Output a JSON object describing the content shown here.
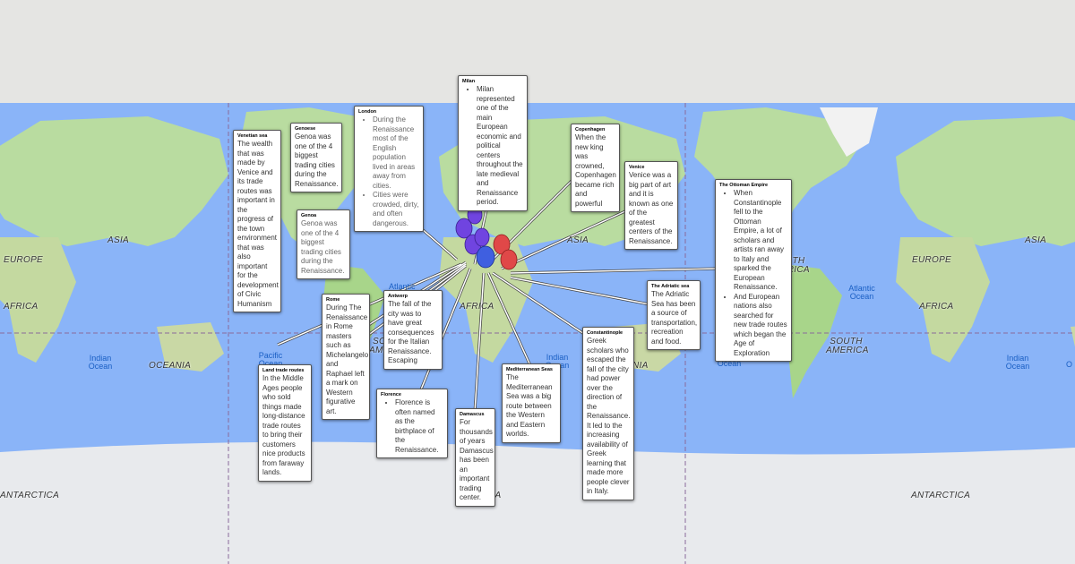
{
  "map": {
    "colors": {
      "ocean": "#8ab4f8",
      "land": "#b9dca0",
      "ice": "#e8eaed",
      "pin_purple": "#7044e0",
      "pin_blue": "#3f5fe0",
      "pin_red": "#e04848"
    },
    "labels": {
      "asia_l": "ASIA",
      "europe_l": "EUROPE",
      "africa_l": "AFRICA",
      "oceania_l": "OCEANIA",
      "antarctica_l": "ANTARCTICA",
      "africa_c": "AFRICA",
      "asia_c": "ASIA",
      "south_c": "SO",
      "america_c": "AME",
      "asia_r": "ASIA",
      "europe_r": "EUROPE",
      "africa_r": "AFRICA",
      "north_america_r": "NORTH AMERICA",
      "south_america_r": "SOUTH AMERICA",
      "antarctica_c": "CA",
      "antarctica_r": "ANTARCTICA",
      "oceania_c": "NIA"
    },
    "oceans": {
      "indian_l": "Indian Ocean",
      "pacific_c": "Pacific Ocean",
      "atlantic_c": "Atlantic",
      "indian_c": "Indian Ocean",
      "pacific_r": "Pacific Ocean",
      "atlantic_r": "Atlantic Ocean",
      "indian_r": "Indian Ocean",
      "o_r": "O"
    }
  },
  "callouts": {
    "venetian": {
      "title": "Venetian sea",
      "text": "The wealth that was made by Venice and its trade routes was important in the progress of the town environment that was also important for the development of Civic Humanism"
    },
    "genoese": {
      "title": "Genoese",
      "text": "Genoa was one of the 4 biggest trading cities during the Renaissance."
    },
    "genoa": {
      "title": "Genoa",
      "text": "Genoa was one of the 4 biggest trading cities during the Renaissance."
    },
    "london": {
      "title": "London",
      "items": [
        "During the Renaissance most of the English population lived in areas away from cities.",
        "Cities were crowded, dirty, and often dangerous."
      ]
    },
    "milan": {
      "title": "Milan",
      "items": [
        "Milan represented one of the main European economic and political centers throughout the late medieval and Renaissance period."
      ]
    },
    "copenhagen": {
      "title": "Copenhagen",
      "text": "When the new king was crowned, Copenhagen became rich and powerful"
    },
    "venice": {
      "title": "Venice",
      "text": "Venice was a big part of art and it is known as one of the greatest centers of the Renaissance."
    },
    "ottoman": {
      "title": "The Ottoman Empire",
      "items": [
        "When Constantinople fell to the Ottoman Empire, a lot of scholars and artists ran away to Italy and sparked the European Renaissance.",
        "And European nations also searched for new trade routes which began the Age of Exploration"
      ]
    },
    "adriatic": {
      "title": "The Adriatic sea",
      "text": "The Adriatic Sea has been a source of transportation, recreation and food."
    },
    "rome": {
      "title": "Rome",
      "text": "During The Renaissance in Rome masters such as Michelangelo and Raphael left a mark on Western figurative art."
    },
    "antwerp": {
      "title": "Antwerp",
      "text": "The fall of the city was to have great consequences for the Italian Renaissance. Escaping"
    },
    "land": {
      "title": "Land trade routes",
      "text": "In the Middle Ages people who sold things made long-distance trade routes to bring their customers nice products from faraway lands."
    },
    "florence": {
      "title": "Florence",
      "items": [
        "Florence is often named as the birthplace of the Renaissance."
      ]
    },
    "damascus": {
      "title": "Damascus",
      "text": "For thousands of years Damascus has been an important trading center."
    },
    "med": {
      "title": "Mediterranean Seas",
      "text": "The Mediterranean Sea was a big route between the Western and Eastern worlds."
    },
    "constantinople": {
      "title": "Constantinople",
      "text": "Greek scholars who escaped the fall of the city had power over the direction of the Renaissance. It led to the increasing availability of Greek learning that made more people clever in Italy."
    }
  }
}
